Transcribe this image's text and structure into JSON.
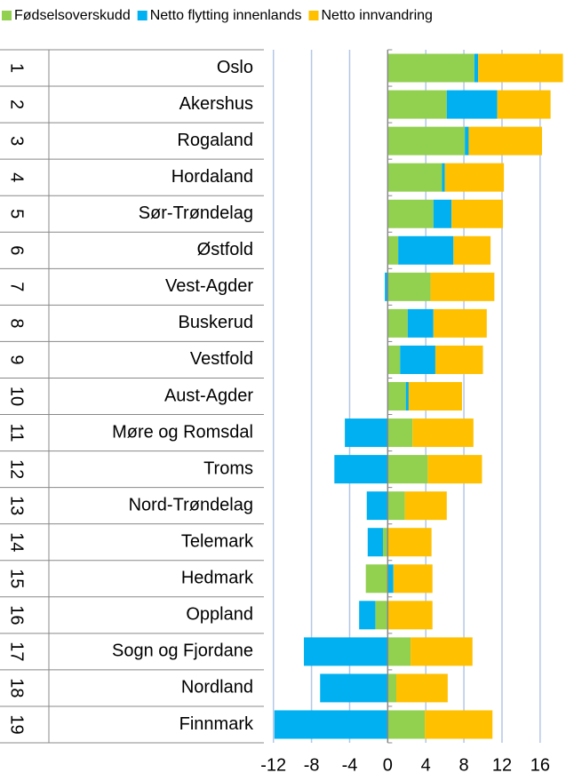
{
  "chart_data": {
    "type": "bar",
    "orientation": "horizontal",
    "stacked": true,
    "row_numbers": [
      "1",
      "2",
      "3",
      "4",
      "5",
      "6",
      "7",
      "8",
      "9",
      "10",
      "11",
      "12",
      "13",
      "14",
      "15",
      "16",
      "17",
      "18",
      "19"
    ],
    "categories": [
      "Oslo",
      "Akershus",
      "Rogaland",
      "Hordaland",
      "Sør-Trøndelag",
      "Østfold",
      "Vest-Agder",
      "Buskerud",
      "Vestfold",
      "Aust-Agder",
      "Møre og Romsdal",
      "Troms",
      "Nord-Trøndelag",
      "Telemark",
      "Hedmark",
      "Oppland",
      "Sogn og Fjordane",
      "Nordland",
      "Finnmark"
    ],
    "series": [
      {
        "name": "Fødselsoverskudd",
        "color": "#92d050",
        "values": [
          9.1,
          6.2,
          8.1,
          5.7,
          4.8,
          1.1,
          4.5,
          2.1,
          1.3,
          1.9,
          2.6,
          4.2,
          1.8,
          -0.5,
          -2.3,
          -1.3,
          2.4,
          0.9,
          3.9
        ]
      },
      {
        "name": "Netto flytting innenlands",
        "color": "#00b0f0",
        "values": [
          0.4,
          5.3,
          0.4,
          0.3,
          1.9,
          5.8,
          -0.3,
          2.7,
          3.7,
          0.3,
          -4.5,
          -5.6,
          -2.2,
          -1.6,
          0.6,
          -1.7,
          -8.8,
          -7.1,
          -11.9
        ]
      },
      {
        "name": "Netto innvandring",
        "color": "#ffc000",
        "values": [
          8.9,
          5.6,
          7.7,
          6.2,
          5.4,
          3.9,
          6.7,
          5.6,
          5.0,
          5.6,
          6.4,
          5.7,
          4.4,
          4.6,
          4.1,
          4.7,
          6.5,
          5.4,
          7.1
        ]
      }
    ],
    "xlim": [
      -13,
      19
    ],
    "xticks": [
      -12,
      -8,
      -4,
      0,
      4,
      8,
      12,
      16
    ],
    "grid": true,
    "legend": "top"
  }
}
